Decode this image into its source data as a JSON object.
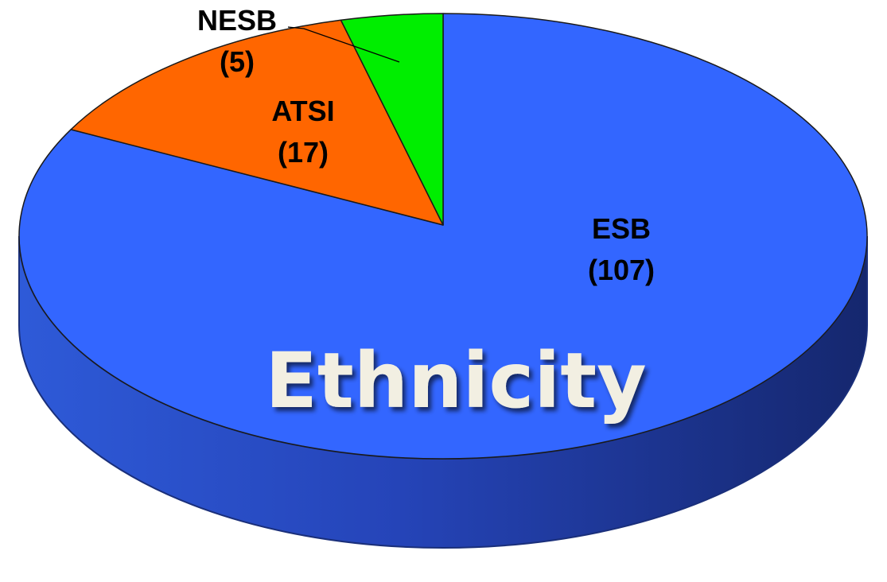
{
  "chart_data": {
    "type": "pie",
    "title": "Ethnicity",
    "slices": [
      {
        "name": "ESB",
        "value": 107,
        "value_label": "(107)",
        "color": "#3366ff"
      },
      {
        "name": "ATSI",
        "value": 17,
        "value_label": "(17)",
        "color": "#ff6600"
      },
      {
        "name": "NESB",
        "value": 5,
        "value_label": "(5)",
        "color": "#00ee00"
      }
    ],
    "style": "3d-perspective",
    "edge_color": "#1a2f7a"
  }
}
